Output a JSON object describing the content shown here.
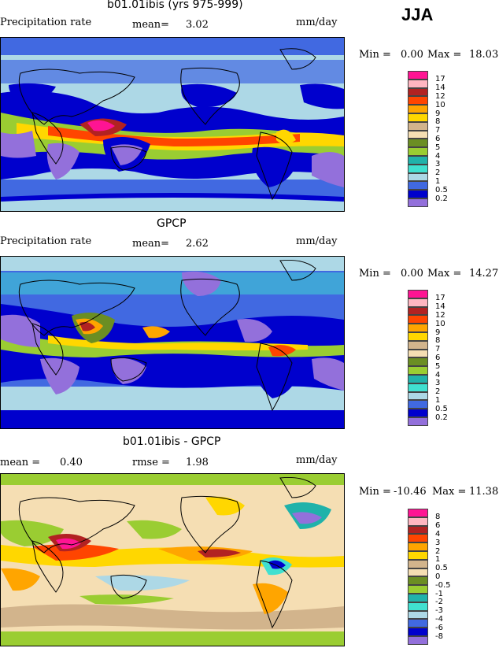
{
  "season": "JJA",
  "panels": [
    {
      "title": "b01.01ibis (yrs 975-999)",
      "left_label": "Precipitation rate",
      "stat1_label": "mean=",
      "stat1_value": "3.02",
      "stat2_label": "",
      "stat2_value": "",
      "units": "mm/day",
      "min_label": "Min =",
      "min_value": "0.00",
      "max_label": "Max =",
      "max_value": "18.03",
      "colorbar": {
        "ticks": [
          "17",
          "14",
          "12",
          "10",
          "9",
          "8",
          "7",
          "6",
          "5",
          "4",
          "3",
          "2",
          "1",
          "0.5",
          "0.2"
        ],
        "colors": [
          "#ff1493",
          "#ffb6c1",
          "#b22222",
          "#ff4500",
          "#ffa500",
          "#ffd700",
          "#d2b48c",
          "#f5deb3",
          "#6b8e23",
          "#9acd32",
          "#20b2aa",
          "#40e0d0",
          "#add8e6",
          "#4169e1",
          "#0000cd",
          "#9370db"
        ]
      }
    },
    {
      "title": "GPCP",
      "left_label": "Precipitation rate",
      "stat1_label": "mean=",
      "stat1_value": "2.62",
      "stat2_label": "",
      "stat2_value": "",
      "units": "mm/day",
      "min_label": "Min =",
      "min_value": "0.00",
      "max_label": "Max =",
      "max_value": "14.27",
      "colorbar": {
        "ticks": [
          "17",
          "14",
          "12",
          "10",
          "9",
          "8",
          "7",
          "6",
          "5",
          "4",
          "3",
          "2",
          "1",
          "0.5",
          "0.2"
        ],
        "colors": [
          "#ff1493",
          "#ffb6c1",
          "#b22222",
          "#ff4500",
          "#ffa500",
          "#ffd700",
          "#d2b48c",
          "#f5deb3",
          "#6b8e23",
          "#9acd32",
          "#20b2aa",
          "#40e0d0",
          "#add8e6",
          "#4169e1",
          "#0000cd",
          "#9370db"
        ]
      }
    },
    {
      "title": "b01.01ibis - GPCP",
      "left_label": "",
      "stat1_label": "mean =",
      "stat1_value": "0.40",
      "stat2_label": "rmse =",
      "stat2_value": "1.98",
      "units": "mm/day",
      "min_label": "Min =",
      "min_value": "-10.46",
      "max_label": "Max =",
      "max_value": "11.38",
      "colorbar": {
        "ticks": [
          "8",
          "6",
          "4",
          "3",
          "2",
          "1",
          "0.5",
          "0",
          "-0.5",
          "-1",
          "-2",
          "-3",
          "-4",
          "-6",
          "-8"
        ],
        "colors": [
          "#ff1493",
          "#ffb6c1",
          "#b22222",
          "#ff4500",
          "#ffa500",
          "#ffd700",
          "#d2b48c",
          "#f5deb3",
          "#6b8e23",
          "#9acd32",
          "#20b2aa",
          "#40e0d0",
          "#add8e6",
          "#4169e1",
          "#0000cd",
          "#9370db"
        ]
      }
    }
  ]
}
